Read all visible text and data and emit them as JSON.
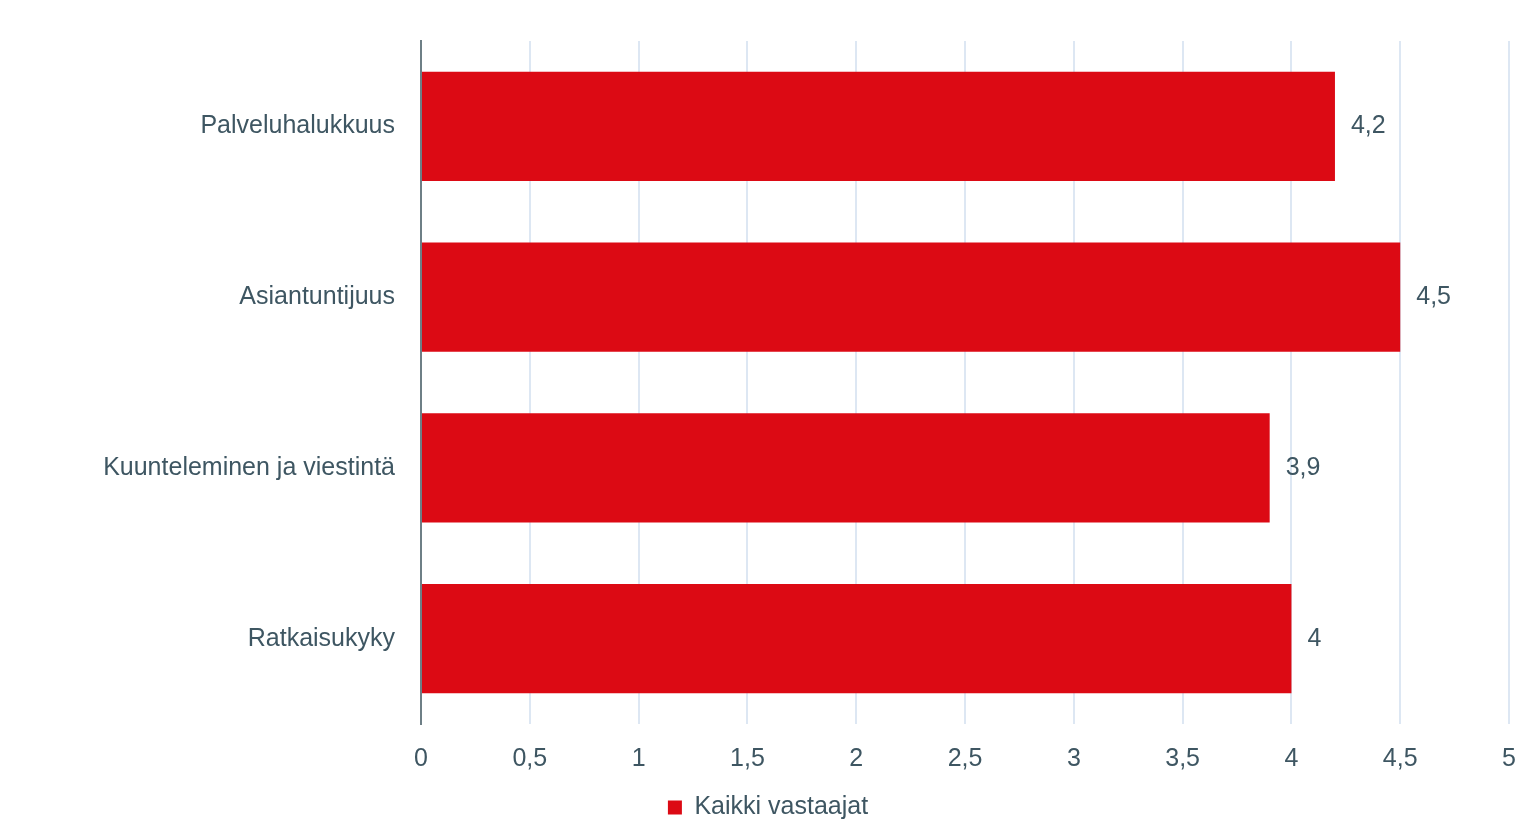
{
  "chart_data": {
    "type": "bar",
    "orientation": "horizontal",
    "categories": [
      "Palveluhalukkuus",
      "Asiantuntijuus",
      "Kuunteleminen ja viestintä",
      "Ratkaisukyky"
    ],
    "series": [
      {
        "name": "Kaikki vastaajat",
        "color": "#dc0a14",
        "values": [
          4.2,
          4.5,
          3.9,
          4
        ],
        "value_labels": [
          "4,2",
          "4,5",
          "3,9",
          "4"
        ]
      }
    ],
    "xlim": [
      0,
      5
    ],
    "xticks": [
      0,
      {
        "value": 0.5,
        "label": "0,5"
      },
      1,
      {
        "value": 1.5,
        "label": "1,5"
      },
      2,
      {
        "value": 2.5,
        "label": "2,5"
      },
      3,
      {
        "value": 3.5,
        "label": "3,5"
      },
      4,
      {
        "value": 4.5,
        "label": "4,5"
      },
      5
    ],
    "grid": "x",
    "legend": "bottom"
  }
}
